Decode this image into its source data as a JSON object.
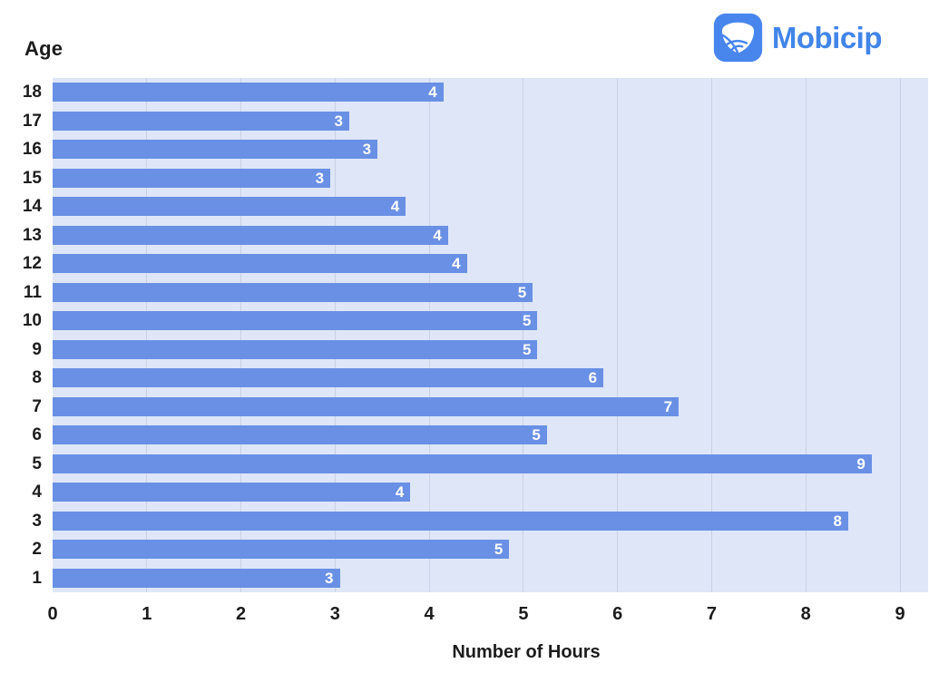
{
  "brand": {
    "name": "Mobicip"
  },
  "chart_data": {
    "type": "bar",
    "orientation": "horizontal",
    "xlabel": "Number of Hours",
    "ylabel": "Age",
    "xlim": [
      0,
      9
    ],
    "x_ticks": [
      "0",
      "1",
      "2",
      "3",
      "4",
      "5",
      "6",
      "7",
      "8",
      "9"
    ],
    "grid": "vertical",
    "legend": "none",
    "categories": [
      "18",
      "17",
      "16",
      "15",
      "14",
      "13",
      "12",
      "11",
      "10",
      "9",
      "8",
      "7",
      "6",
      "5",
      "4",
      "3",
      "2",
      "1"
    ],
    "series": [
      {
        "values": [
          4.15,
          3.15,
          3.45,
          2.95,
          3.75,
          4.2,
          4.4,
          5.1,
          5.15,
          5.15,
          5.85,
          6.65,
          5.25,
          8.7,
          3.8,
          8.45,
          4.85,
          3.05
        ],
        "bar_labels": [
          "4",
          "3",
          "3",
          "3",
          "4",
          "4",
          "4",
          "5",
          "5",
          "5",
          "6",
          "7",
          "5",
          "9",
          "4",
          "8",
          "5",
          "3"
        ]
      }
    ]
  },
  "colors": {
    "bar": "#6990E5",
    "bar_label": "#FFFFFF",
    "plot_background": "#DEE6F7",
    "gridline": "#C9D2E4",
    "axis_text": "#1C1C1C",
    "brand_blue": "#4285E9",
    "brand_icon_blue": "#4886EE",
    "page_background": "#FFFFFF"
  }
}
